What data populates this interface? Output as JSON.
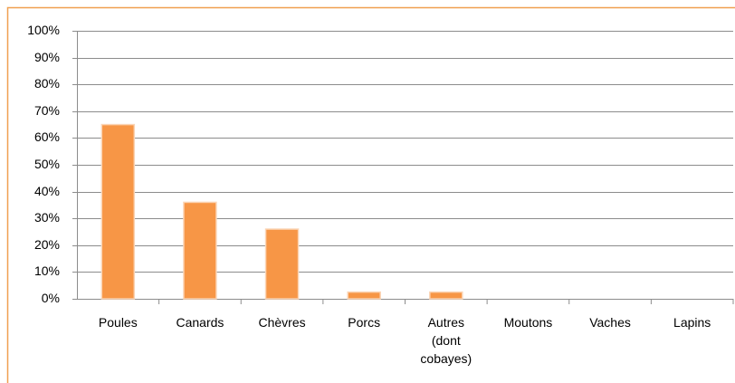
{
  "chart_data": {
    "type": "bar",
    "categories": [
      "Poules",
      "Canards",
      "Chèvres",
      "Porcs",
      "Autres (dont cobayes)",
      "Moutons",
      "Vaches",
      "Lapins"
    ],
    "values": [
      65,
      36,
      26,
      2.5,
      2.5,
      0,
      0,
      0
    ],
    "color": "#f79646",
    "ylim": [
      0,
      100
    ],
    "yticks": [
      {
        "value": 0,
        "label": "0%"
      },
      {
        "value": 10,
        "label": "10%"
      },
      {
        "value": 20,
        "label": "20%"
      },
      {
        "value": 30,
        "label": "30%"
      },
      {
        "value": 40,
        "label": "40%"
      },
      {
        "value": 50,
        "label": "50%"
      },
      {
        "value": 60,
        "label": "60%"
      },
      {
        "value": 70,
        "label": "70%"
      },
      {
        "value": 80,
        "label": "80%"
      },
      {
        "value": 90,
        "label": "90%"
      },
      {
        "value": 100,
        "label": "100%"
      }
    ],
    "grid": true
  }
}
